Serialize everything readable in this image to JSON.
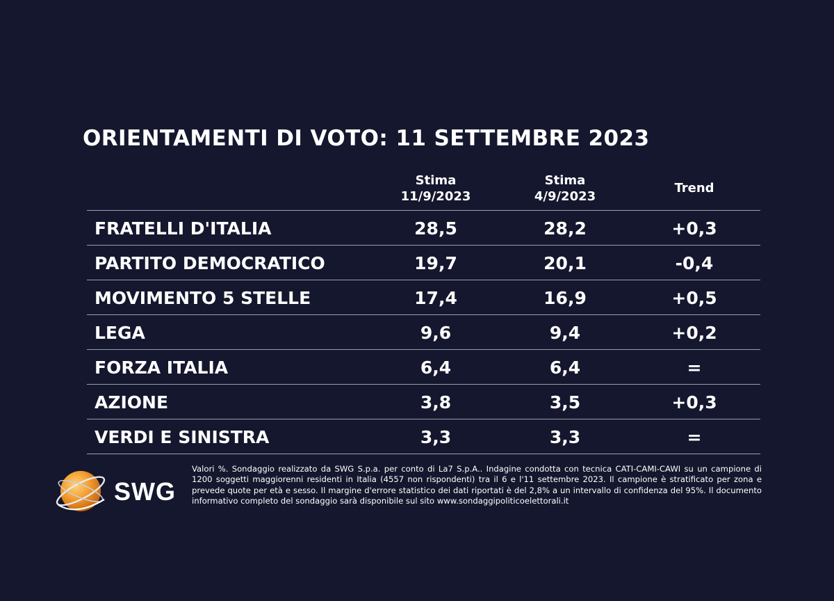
{
  "chart_data": {
    "type": "table",
    "title": "ORIENTAMENTI DI VOTO: 11 SETTEMBRE 2023",
    "columns": [
      {
        "line1": "Stima",
        "line2": "11/9/2023"
      },
      {
        "line1": "Stima",
        "line2": "4/9/2023"
      },
      {
        "line1": "Trend",
        "line2": ""
      }
    ],
    "rows": [
      {
        "party": "FRATELLI D'ITALIA",
        "stima_11_9": "28,5",
        "stima_4_9": "28,2",
        "trend": "+0,3"
      },
      {
        "party": "PARTITO DEMOCRATICO",
        "stima_11_9": "19,7",
        "stima_4_9": "20,1",
        "trend": "-0,4"
      },
      {
        "party": "MOVIMENTO 5 STELLE",
        "stima_11_9": "17,4",
        "stima_4_9": "16,9",
        "trend": "+0,5"
      },
      {
        "party": "LEGA",
        "stima_11_9": "9,6",
        "stima_4_9": "9,4",
        "trend": "+0,2"
      },
      {
        "party": "FORZA ITALIA",
        "stima_11_9": "6,4",
        "stima_4_9": "6,4",
        "trend": "="
      },
      {
        "party": "AZIONE",
        "stima_11_9": "3,8",
        "stima_4_9": "3,5",
        "trend": "+0,3"
      },
      {
        "party": "VERDI E SINISTRA",
        "stima_11_9": "3,3",
        "stima_4_9": "3,3",
        "trend": "="
      }
    ]
  },
  "logo": {
    "text": "SWG",
    "icon": "swg-globe-logo",
    "color": "#f08a1c"
  },
  "footnote": "Valori %. Sondaggio realizzato da SWG S.p.a. per conto di La7 S.p.A.. Indagine condotta con tecnica CATI-CAMI-CAWI su un campione di 1200 soggetti maggiorenni residenti in Italia (4557 non rispondenti) tra il 6 e l'11 settembre 2023. Il campione è stratificato per zona e prevede quote per età e sesso. Il margine d'errore statistico dei dati riportati è del 2,8% a un intervallo di confidenza del 95%. Il documento informativo completo del sondaggio sarà disponibile sul sito www.sondaggipoliticoelettorali.it",
  "colors": {
    "background": "#14172d",
    "text": "#ffffff",
    "rule": "#9aa0b2"
  }
}
